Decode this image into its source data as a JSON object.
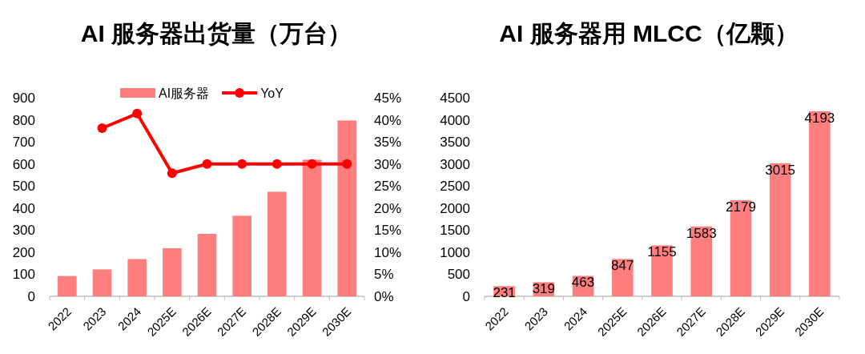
{
  "chart_data": [
    {
      "type": "bar",
      "title": "AI 服务器出货量（万台）",
      "categories": [
        "2022",
        "2023",
        "2024",
        "2025E",
        "2026E",
        "2027E",
        "2028E",
        "2029E",
        "2030E"
      ],
      "series": [
        {
          "name": "AI服务器",
          "color": "#ff7f7f",
          "values": [
            92,
            122,
            169,
            218,
            283,
            365,
            474,
            619,
            797
          ]
        },
        {
          "name": "YoY",
          "type": "line",
          "axis": "y2",
          "color": "#ff0000",
          "marker": "circle",
          "values": [
            null,
            38.1,
            41.4,
            27.9,
            30.0,
            30.0,
            30.0,
            30.0,
            30.0
          ]
        }
      ],
      "ylim": [
        0,
        900
      ],
      "yticks": [
        0,
        100,
        200,
        300,
        400,
        500,
        600,
        700,
        800,
        900
      ],
      "y2lim": [
        0,
        45
      ],
      "y2ticks": [
        {
          "value": 0,
          "label": "0%"
        },
        {
          "value": 5,
          "label": "5%"
        },
        {
          "value": 10,
          "label": "10%"
        },
        {
          "value": 15,
          "label": "15%"
        },
        {
          "value": 20,
          "label": "20%"
        },
        {
          "value": 25,
          "label": "25%"
        },
        {
          "value": 30,
          "label": "30%"
        },
        {
          "value": 35,
          "label": "35%"
        },
        {
          "value": 40,
          "label": "40%"
        },
        {
          "value": 45,
          "label": "45%"
        }
      ],
      "legend": "top",
      "grid": false
    },
    {
      "type": "bar",
      "title": "AI 服务器用 MLCC（亿颗）",
      "categories": [
        "2022",
        "2023",
        "2024",
        "2025E",
        "2026E",
        "2027E",
        "2028E",
        "2029E",
        "2030E"
      ],
      "values": [
        231,
        319,
        463,
        847,
        1155,
        1583,
        2179,
        3015,
        4193
      ],
      "color": "#ff7f7f",
      "ylim": [
        0,
        4500
      ],
      "yticks": [
        0,
        500,
        1000,
        1500,
        2000,
        2500,
        3000,
        3500,
        4000,
        4500
      ],
      "data_labels": true,
      "grid": false
    }
  ]
}
